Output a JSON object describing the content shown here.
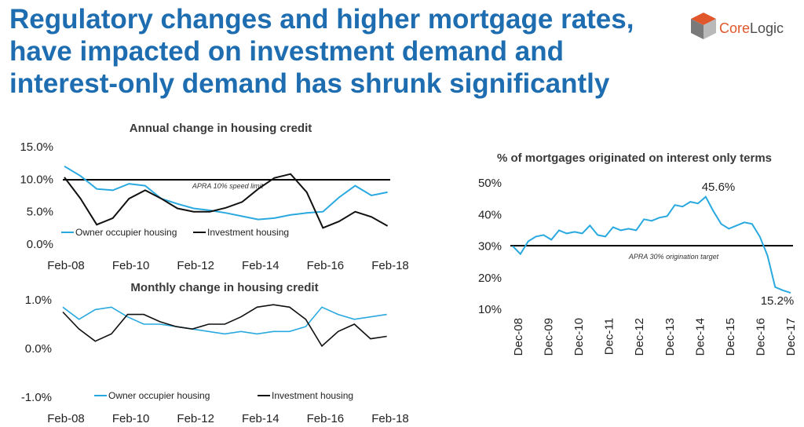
{
  "headline": {
    "lines": [
      "Regulatory changes and higher mortgage rates,",
      "have impacted on investment demand and",
      "interest-only demand has shrunk significantly"
    ]
  },
  "logo": {
    "text_core": "Core",
    "text_logic": "Logic",
    "icon": "corelogic-cube-icon",
    "colors": [
      "#e0572b",
      "#7a7a7a",
      "#b9b9b9"
    ]
  },
  "colors": {
    "owner": "#29a9df",
    "investment": "#111111",
    "threshold": "#000000"
  },
  "chart_data": [
    {
      "type": "line",
      "title": "Annual change in housing credit",
      "x_ticks": [
        "Feb-08",
        "Feb-10",
        "Feb-12",
        "Feb-14",
        "Feb-16",
        "Feb-18"
      ],
      "y_ticks": [
        "15.0%",
        "10.0%",
        "5.0%",
        "0.0%"
      ],
      "ylim": [
        0,
        15
      ],
      "xlim": [
        "2008-02",
        "2018-03"
      ],
      "legend_position": "bottom-left",
      "reference_line": {
        "value": 10,
        "label": "APRA 10% speed limit"
      },
      "series": [
        {
          "name": "Owner occupier housing",
          "x": [
            "2008-02",
            "2008-08",
            "2009-02",
            "2009-08",
            "2010-02",
            "2010-08",
            "2011-02",
            "2011-08",
            "2012-02",
            "2012-08",
            "2013-02",
            "2013-08",
            "2014-02",
            "2014-08",
            "2015-02",
            "2015-08",
            "2016-02",
            "2016-08",
            "2017-02",
            "2017-08",
            "2018-02"
          ],
          "values": [
            12.0,
            10.5,
            8.5,
            8.3,
            9.3,
            9.0,
            7.0,
            6.2,
            5.5,
            5.2,
            4.8,
            4.3,
            3.8,
            4.0,
            4.5,
            4.8,
            5.0,
            7.2,
            9.0,
            7.5,
            8.0
          ]
        },
        {
          "name": "Investment housing",
          "x": [
            "2008-02",
            "2008-08",
            "2009-02",
            "2009-08",
            "2010-02",
            "2010-08",
            "2011-02",
            "2011-08",
            "2012-02",
            "2012-08",
            "2013-02",
            "2013-08",
            "2014-02",
            "2014-08",
            "2015-02",
            "2015-08",
            "2016-02",
            "2016-08",
            "2017-02",
            "2017-08",
            "2018-02"
          ],
          "values": [
            10.3,
            7.0,
            3.0,
            4.0,
            7.0,
            8.3,
            7.0,
            5.5,
            5.0,
            5.0,
            5.6,
            6.5,
            8.5,
            10.2,
            10.8,
            8.0,
            2.5,
            3.5,
            5.0,
            4.2,
            2.8
          ]
        }
      ]
    },
    {
      "type": "line",
      "title": "Monthly change in housing credit",
      "x_ticks": [
        "Feb-08",
        "Feb-10",
        "Feb-12",
        "Feb-14",
        "Feb-16",
        "Feb-18"
      ],
      "y_ticks": [
        "1.0%",
        "0.0%",
        "-1.0%"
      ],
      "ylim": [
        -1,
        1
      ],
      "xlim": [
        "2008-02",
        "2018-03"
      ],
      "legend_position": "bottom",
      "series": [
        {
          "name": "Owner occupier housing",
          "x": [
            "2008-02",
            "2008-08",
            "2009-02",
            "2009-08",
            "2010-02",
            "2010-08",
            "2011-02",
            "2011-08",
            "2012-02",
            "2012-08",
            "2013-02",
            "2013-08",
            "2014-02",
            "2014-08",
            "2015-02",
            "2015-08",
            "2016-02",
            "2016-08",
            "2017-02",
            "2017-08",
            "2018-02"
          ],
          "values": [
            0.85,
            0.6,
            0.8,
            0.85,
            0.65,
            0.5,
            0.5,
            0.45,
            0.4,
            0.35,
            0.3,
            0.35,
            0.3,
            0.35,
            0.35,
            0.45,
            0.85,
            0.7,
            0.6,
            0.65,
            0.7
          ]
        },
        {
          "name": "Investment housing",
          "x": [
            "2008-02",
            "2008-08",
            "2009-02",
            "2009-08",
            "2010-02",
            "2010-08",
            "2011-02",
            "2011-08",
            "2012-02",
            "2012-08",
            "2013-02",
            "2013-08",
            "2014-02",
            "2014-08",
            "2015-02",
            "2015-08",
            "2016-02",
            "2016-08",
            "2017-02",
            "2017-08",
            "2018-02"
          ],
          "values": [
            0.75,
            0.4,
            0.15,
            0.3,
            0.7,
            0.7,
            0.55,
            0.45,
            0.4,
            0.5,
            0.5,
            0.65,
            0.85,
            0.9,
            0.85,
            0.6,
            0.05,
            0.35,
            0.5,
            0.2,
            0.25
          ]
        }
      ]
    },
    {
      "type": "line",
      "title": "% of mortgages originated on interest only terms",
      "x_ticks": [
        "Dec-08",
        "Dec-09",
        "Dec-10",
        "Dec-11",
        "Dec-12",
        "Dec-13",
        "Dec-14",
        "Dec-15",
        "Dec-16",
        "Dec-17"
      ],
      "y_ticks": [
        "50%",
        "40%",
        "30%",
        "20%",
        "10%"
      ],
      "ylim": [
        10,
        50
      ],
      "xlim": [
        "2008-12",
        "2017-12"
      ],
      "reference_line": {
        "value": 30,
        "label": "APRA 30% origination target"
      },
      "annotations": [
        {
          "text": "45.6%",
          "x": "2015-03",
          "y": 45.6
        },
        {
          "text": "15.2%",
          "x": "2017-12",
          "y": 15.2
        }
      ],
      "series": [
        {
          "name": "",
          "x": [
            "2008-12",
            "2009-03",
            "2009-06",
            "2009-09",
            "2009-12",
            "2010-03",
            "2010-06",
            "2010-09",
            "2010-12",
            "2011-03",
            "2011-06",
            "2011-09",
            "2011-12",
            "2012-03",
            "2012-06",
            "2012-09",
            "2012-12",
            "2013-03",
            "2013-06",
            "2013-09",
            "2013-12",
            "2014-03",
            "2014-06",
            "2014-09",
            "2014-12",
            "2015-03",
            "2015-06",
            "2015-09",
            "2015-12",
            "2016-03",
            "2016-06",
            "2016-09",
            "2016-12",
            "2017-03",
            "2017-06",
            "2017-09",
            "2017-12"
          ],
          "values": [
            30.0,
            27.5,
            31.5,
            33.0,
            33.5,
            32.0,
            35.0,
            34.0,
            34.5,
            34.0,
            36.5,
            33.5,
            33.0,
            36.0,
            35.0,
            35.5,
            35.0,
            38.5,
            38.0,
            39.0,
            39.5,
            43.0,
            42.5,
            44.0,
            43.5,
            45.6,
            41.0,
            37.0,
            35.5,
            36.5,
            37.5,
            37.0,
            33.0,
            27.0,
            17.0,
            16.0,
            15.2
          ]
        }
      ]
    }
  ]
}
